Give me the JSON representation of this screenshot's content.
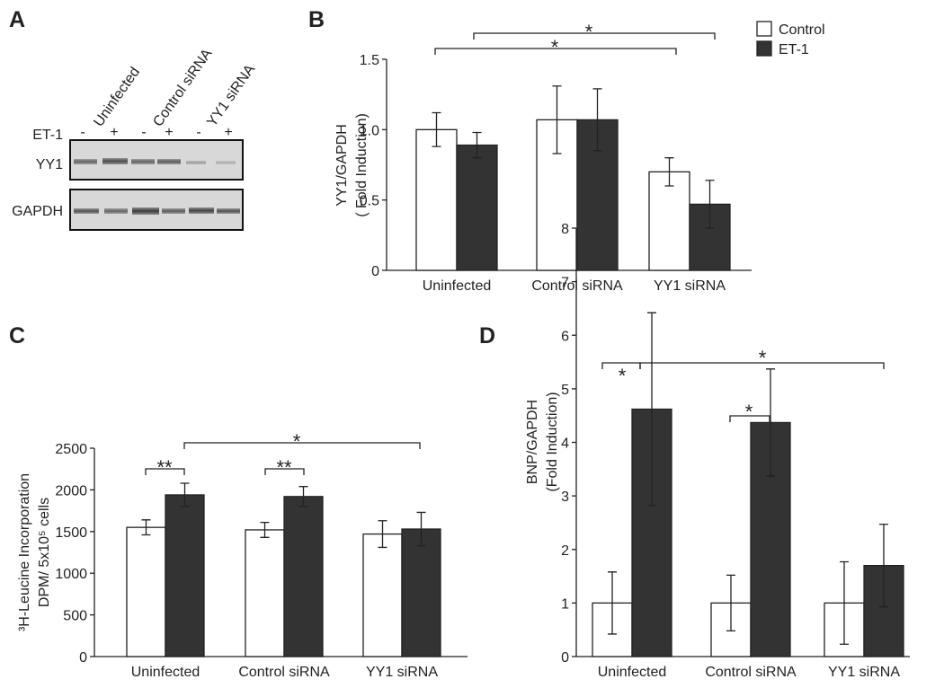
{
  "panel_labels": [
    "A",
    "B",
    "C",
    "D"
  ],
  "blot": {
    "lanes": [
      "Uninfected",
      "Control siRNA",
      "YY1 siRNA"
    ],
    "treatment_label": "ET-1",
    "treatments": [
      "-",
      "+",
      "-",
      "+",
      "-",
      "+"
    ],
    "rows": [
      "YY1",
      "GAPDH"
    ]
  },
  "chart_data": [
    {
      "type": "bar",
      "ylabel": [
        "YY1/GAPDH",
        "( Fold Induction)"
      ],
      "categories": [
        "Uninfected",
        "Control siRNA",
        "YY1 siRNA"
      ],
      "series": [
        {
          "name": "Control",
          "color": "#ffffff",
          "values": [
            1.0,
            1.07,
            0.7
          ],
          "errors": [
            0.12,
            0.24,
            0.1
          ]
        },
        {
          "name": "ET-1",
          "color": "#333333",
          "values": [
            0.89,
            1.07,
            0.47
          ],
          "errors": [
            0.09,
            0.22,
            0.17
          ]
        }
      ],
      "ylim": [
        0,
        1.5
      ],
      "yticks": [
        0,
        0.5,
        {
          "value": 1,
          "label": "1.0"
        },
        1.5
      ],
      "legend": "upper right",
      "annotations": [
        "*",
        "*"
      ]
    },
    {
      "type": "bar",
      "ylabel": [
        "³H-Leucine Incorporation",
        "DPM/ 5x10⁵ cells"
      ],
      "categories": [
        "Uninfected",
        "Control siRNA",
        "YY1 siRNA"
      ],
      "series": [
        {
          "name": "Control",
          "color": "#ffffff",
          "values": [
            1550,
            1520,
            1470
          ],
          "errors": [
            90,
            90,
            160
          ]
        },
        {
          "name": "ET-1",
          "color": "#333333",
          "values": [
            1940,
            1920,
            1530
          ],
          "errors": [
            140,
            120,
            200
          ]
        }
      ],
      "ylim": [
        0,
        2500
      ],
      "yticks": [
        0,
        500,
        1000,
        1500,
        2000,
        2500
      ],
      "annotations": [
        "**",
        "**",
        "*"
      ]
    },
    {
      "type": "bar",
      "ylabel": [
        "BNP/GAPDH",
        "(Fold Induction)"
      ],
      "categories": [
        "Uninfected",
        "Control siRNA",
        "YY1 siRNA"
      ],
      "series": [
        {
          "name": "Control",
          "color": "#ffffff",
          "values": [
            1,
            1,
            1
          ],
          "errors": [
            0.58,
            0.52,
            0.77
          ]
        },
        {
          "name": "ET-1",
          "color": "#333333",
          "values": [
            4.62,
            4.37,
            1.7
          ],
          "errors": [
            1.8,
            1.0,
            0.77
          ]
        }
      ],
      "ylim": [
        0,
        8
      ],
      "yticks": [
        0,
        1,
        2,
        3,
        4,
        5,
        6,
        7,
        8
      ],
      "annotations": [
        "*",
        "*",
        "*"
      ]
    }
  ]
}
